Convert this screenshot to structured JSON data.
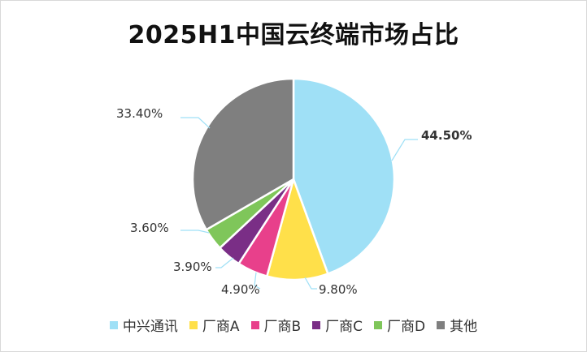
{
  "chart_data": {
    "type": "pie",
    "title": "2025H1中国云终端市场占比",
    "categories": [
      "中兴通讯",
      "厂商A",
      "厂商B",
      "厂商C",
      "厂商D",
      "其他"
    ],
    "values": [
      44.5,
      9.8,
      4.9,
      3.9,
      3.6,
      33.4
    ],
    "value_labels": [
      "44.50%",
      "9.80%",
      "4.90%",
      "3.90%",
      "3.60%",
      "33.40%"
    ],
    "colors": [
      "#9FE0F6",
      "#FFE04A",
      "#E8408B",
      "#7A2E86",
      "#7FC65A",
      "#7F7F7F"
    ],
    "bold_labels": [
      true,
      false,
      false,
      false,
      false,
      false
    ],
    "legend_position": "bottom"
  }
}
